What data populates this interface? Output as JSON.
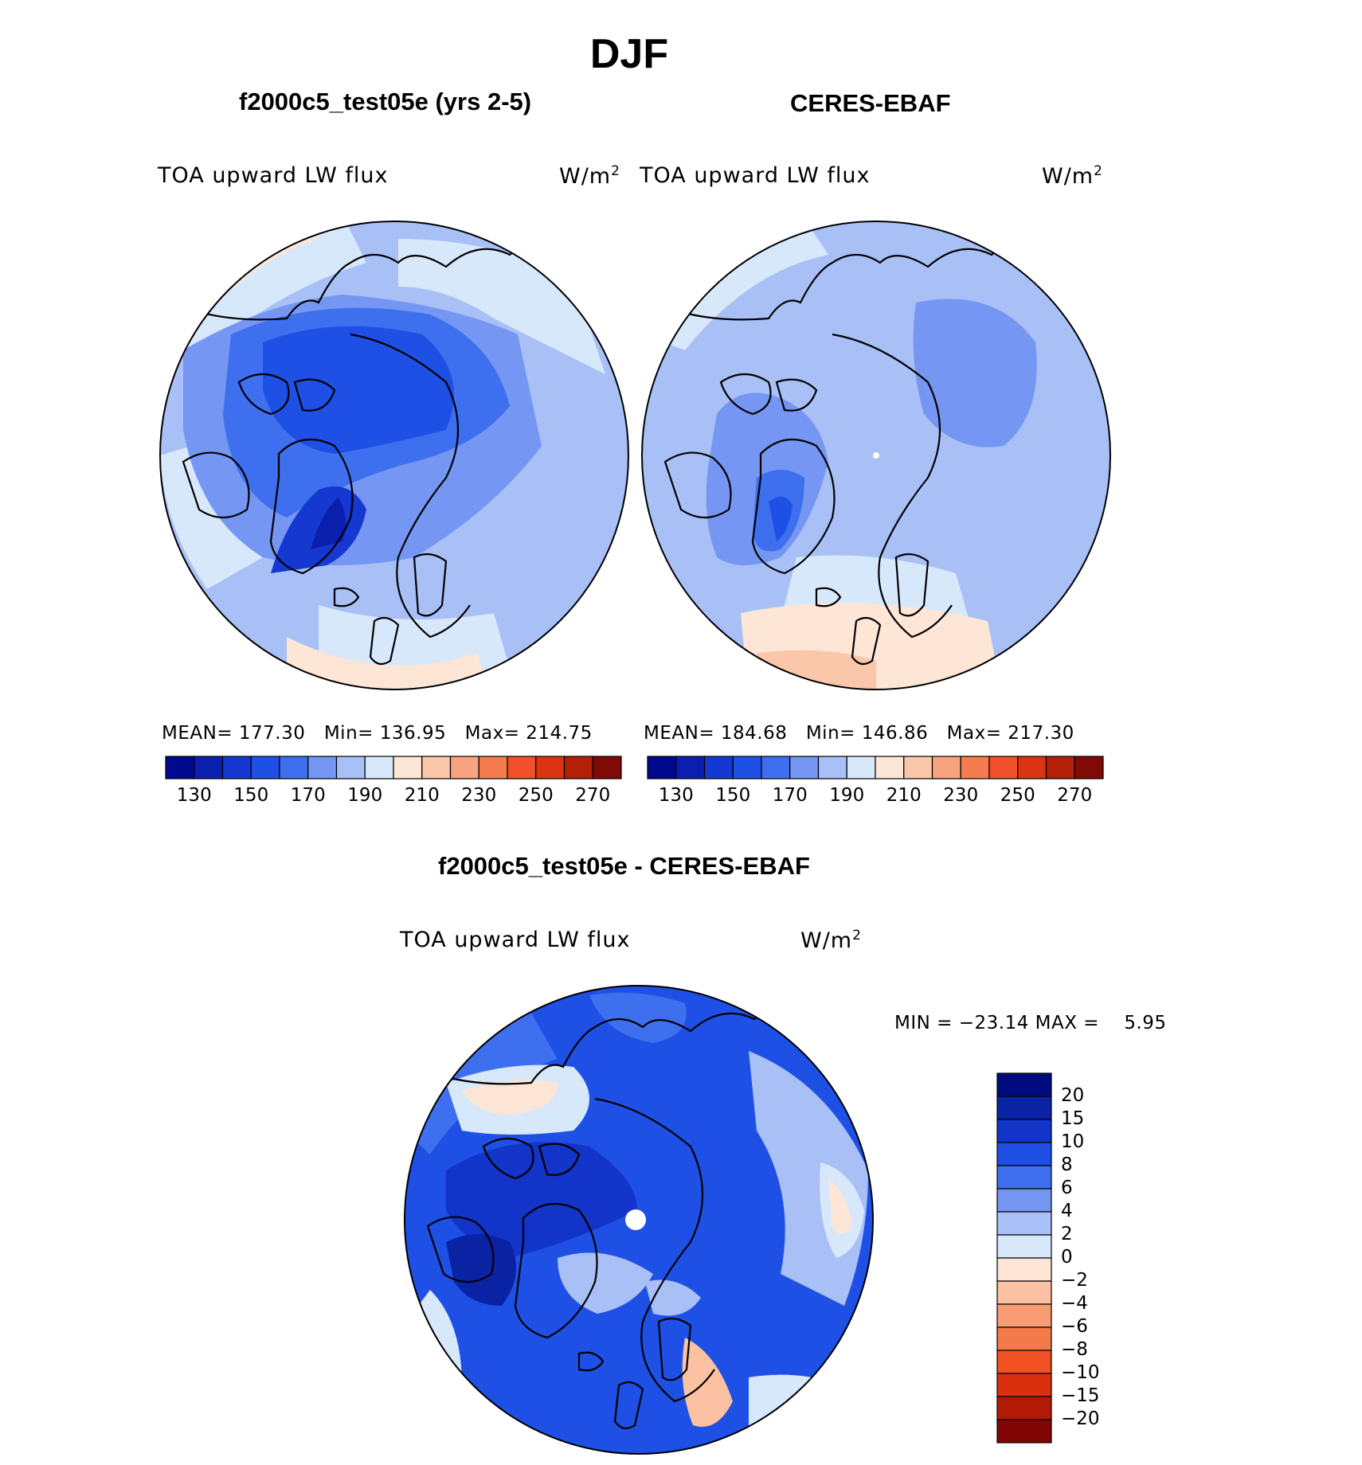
{
  "title": "DJF",
  "panels": [
    {
      "title": "f2000c5_test05e (yrs 2-5)",
      "variable": "TOA upward LW flux",
      "units_base": "W/m",
      "units_exp": "2",
      "mean_label": "MEAN=",
      "mean": "177.30",
      "min_label": "Min=",
      "min": "136.95",
      "max_label": "Max=",
      "max": "214.75"
    },
    {
      "title": "CERES-EBAF",
      "variable": "TOA upward LW flux",
      "units_base": "W/m",
      "units_exp": "2",
      "mean_label": "MEAN=",
      "mean": "184.68",
      "min_label": "Min=",
      "min": "146.86",
      "max_label": "Max=",
      "max": "217.30"
    },
    {
      "title": "f2000c5_test05e - CERES-EBAF",
      "variable": "TOA upward LW flux",
      "units_base": "W/m",
      "units_exp": "2",
      "minmax": "MIN = −23.14 MAX =    5.95"
    }
  ],
  "colorbar_top": {
    "colors": [
      "#000a8c",
      "#0a1fae",
      "#1438d0",
      "#1e50e6",
      "#3e6fee",
      "#7596f2",
      "#a8c0f6",
      "#d8e8fb",
      "#fde6d6",
      "#fbc7ab",
      "#f8a37f",
      "#f57c50",
      "#f2502a",
      "#db3413",
      "#b41f08",
      "#7f0a06"
    ],
    "ticks": [
      "130",
      "150",
      "170",
      "190",
      "210",
      "230",
      "250",
      "270"
    ]
  },
  "colorbar_diff": {
    "colors": [
      "#000c7e",
      "#0a22a4",
      "#1234c8",
      "#1e4ee3",
      "#3f6fee",
      "#7595f2",
      "#a9c1f6",
      "#d8e8fb",
      "#fde6d6",
      "#fbc1a2",
      "#f89c73",
      "#f57a4a",
      "#f25223",
      "#db3010",
      "#b31a06",
      "#800604"
    ],
    "labels": [
      "20",
      "15",
      "10",
      "8",
      "6",
      "4",
      "2",
      "0",
      "−2",
      "−4",
      "−6",
      "−8",
      "−10",
      "−15",
      "−20"
    ]
  }
}
